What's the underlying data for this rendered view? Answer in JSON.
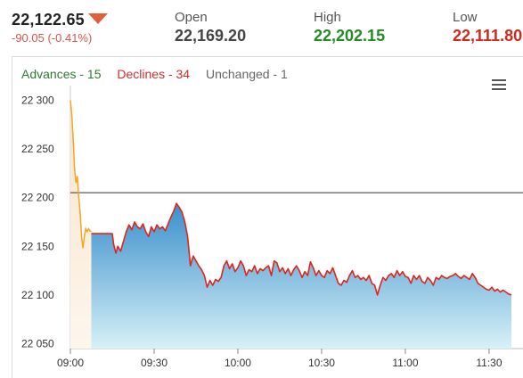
{
  "header": {
    "price": "22,122.65",
    "change": "-90.05 (-0.41%)",
    "open_label": "Open",
    "open_value": "22,169.20",
    "high_label": "High",
    "high_value": "22,202.15",
    "low_label": "Low",
    "low_value": "22,111.80",
    "direction_icon": "triangle-down-icon"
  },
  "legend": {
    "advances": "Advances - 15",
    "declines": "Declines - 34",
    "unchanged": "Unchanged - 1"
  },
  "chart_data": {
    "type": "area",
    "x_ticks": [
      "09:00",
      "09:30",
      "10:00",
      "10:30",
      "11:00",
      "11:30"
    ],
    "y_ticks": [
      "22 050",
      "22 100",
      "22 150",
      "22 200",
      "22 250",
      "22 300"
    ],
    "ylim": [
      22045,
      22315
    ],
    "xlim_minutes": [
      0,
      158
    ],
    "reference_line": 22205,
    "colors": {
      "pre_open": "#f5a623",
      "line": "#e0241b",
      "fill_top": "#3a8fcb",
      "fill_bottom": "#d7f1f7",
      "pre_fill": "#fbeede"
    },
    "pre_open_series": [
      [
        0,
        22300
      ],
      [
        0.5,
        22285
      ],
      [
        1,
        22260
      ],
      [
        1.5,
        22230
      ],
      [
        2,
        22215
      ],
      [
        2.5,
        22222
      ],
      [
        3,
        22200
      ],
      [
        3.5,
        22185
      ],
      [
        4,
        22160
      ],
      [
        4.5,
        22148
      ],
      [
        5,
        22160
      ],
      [
        5.5,
        22168
      ],
      [
        6,
        22165
      ],
      [
        6.5,
        22168
      ],
      [
        7,
        22166
      ],
      [
        7.5,
        22165
      ]
    ],
    "series": [
      [
        7.5,
        22163
      ],
      [
        15,
        22163
      ],
      [
        15.5,
        22152
      ],
      [
        16.3,
        22143
      ],
      [
        17,
        22150
      ],
      [
        18,
        22145
      ],
      [
        19,
        22155
      ],
      [
        20,
        22165
      ],
      [
        21,
        22172
      ],
      [
        22,
        22167
      ],
      [
        23,
        22175
      ],
      [
        24,
        22170
      ],
      [
        25,
        22168
      ],
      [
        26,
        22173
      ],
      [
        27,
        22165
      ],
      [
        28,
        22160
      ],
      [
        29,
        22170
      ],
      [
        30,
        22165
      ],
      [
        31,
        22172
      ],
      [
        32,
        22168
      ],
      [
        33,
        22170
      ],
      [
        34,
        22166
      ],
      [
        35,
        22173
      ],
      [
        36,
        22180
      ],
      [
        37,
        22186
      ],
      [
        38,
        22194
      ],
      [
        39,
        22190
      ],
      [
        40,
        22185
      ],
      [
        41,
        22175
      ],
      [
        42,
        22160
      ],
      [
        43,
        22130
      ],
      [
        44,
        22140
      ],
      [
        45,
        22135
      ],
      [
        46,
        22130
      ],
      [
        47,
        22126
      ],
      [
        48,
        22120
      ],
      [
        49,
        22108
      ],
      [
        50,
        22115
      ],
      [
        51,
        22110
      ],
      [
        52,
        22116
      ],
      [
        53,
        22114
      ],
      [
        54,
        22118
      ],
      [
        55,
        22130
      ],
      [
        56,
        22135
      ],
      [
        57,
        22127
      ],
      [
        58,
        22132
      ],
      [
        59,
        22124
      ],
      [
        60,
        22128
      ],
      [
        61,
        22135
      ],
      [
        62,
        22130
      ],
      [
        63,
        22120
      ],
      [
        64,
        22126
      ],
      [
        65,
        22124
      ],
      [
        66,
        22130
      ],
      [
        67,
        22122
      ],
      [
        68,
        22127
      ],
      [
        69,
        22125
      ],
      [
        70,
        22128
      ],
      [
        71,
        22130
      ],
      [
        72,
        22120
      ],
      [
        73,
        22135
      ],
      [
        74,
        22133
      ],
      [
        75,
        22124
      ],
      [
        76,
        22128
      ],
      [
        77,
        22122
      ],
      [
        78,
        22127
      ],
      [
        79,
        22120
      ],
      [
        80,
        22126
      ],
      [
        81,
        22130
      ],
      [
        82,
        22125
      ],
      [
        83,
        22118
      ],
      [
        84,
        22124
      ],
      [
        85,
        22120
      ],
      [
        86,
        22134
      ],
      [
        87,
        22128
      ],
      [
        88,
        22120
      ],
      [
        89,
        22125
      ],
      [
        90,
        22120
      ],
      [
        91,
        22118
      ],
      [
        92,
        22125
      ],
      [
        93,
        22122
      ],
      [
        94,
        22128
      ],
      [
        95,
        22120
      ],
      [
        96,
        22112
      ],
      [
        97,
        22110
      ],
      [
        98,
        22115
      ],
      [
        99,
        22113
      ],
      [
        100,
        22120
      ],
      [
        101,
        22125
      ],
      [
        102,
        22118
      ],
      [
        103,
        22120
      ],
      [
        104,
        22116
      ],
      [
        105,
        22118
      ],
      [
        106,
        22115
      ],
      [
        107,
        22120
      ],
      [
        108,
        22112
      ],
      [
        109,
        22110
      ],
      [
        110,
        22100
      ],
      [
        111,
        22110
      ],
      [
        112,
        22118
      ],
      [
        113,
        22115
      ],
      [
        114,
        22120
      ],
      [
        115,
        22122
      ],
      [
        116,
        22118
      ],
      [
        117,
        22125
      ],
      [
        118,
        22120
      ],
      [
        119,
        22124
      ],
      [
        120,
        22119
      ],
      [
        121,
        22118
      ],
      [
        122,
        22112
      ],
      [
        123,
        22120
      ],
      [
        124,
        22116
      ],
      [
        125,
        22120
      ],
      [
        126,
        22114
      ],
      [
        127,
        22112
      ],
      [
        128,
        22118
      ],
      [
        129,
        22115
      ],
      [
        130,
        22110
      ],
      [
        131,
        22118
      ],
      [
        132,
        22116
      ],
      [
        133,
        22120
      ],
      [
        134,
        22118
      ],
      [
        135,
        22117
      ],
      [
        136,
        22119
      ],
      [
        137,
        22120
      ],
      [
        138,
        22122
      ],
      [
        139,
        22119
      ],
      [
        140,
        22117
      ],
      [
        141,
        22120
      ],
      [
        142,
        22118
      ],
      [
        143,
        22116
      ],
      [
        144,
        22122
      ],
      [
        145,
        22118
      ],
      [
        146,
        22112
      ],
      [
        147,
        22110
      ],
      [
        148,
        22108
      ],
      [
        149,
        22106
      ],
      [
        150,
        22105
      ],
      [
        151,
        22108
      ],
      [
        152,
        22104
      ],
      [
        153,
        22106
      ],
      [
        154,
        22103
      ],
      [
        155,
        22105
      ],
      [
        156,
        22103
      ],
      [
        157,
        22101
      ],
      [
        158,
        22100
      ]
    ]
  }
}
